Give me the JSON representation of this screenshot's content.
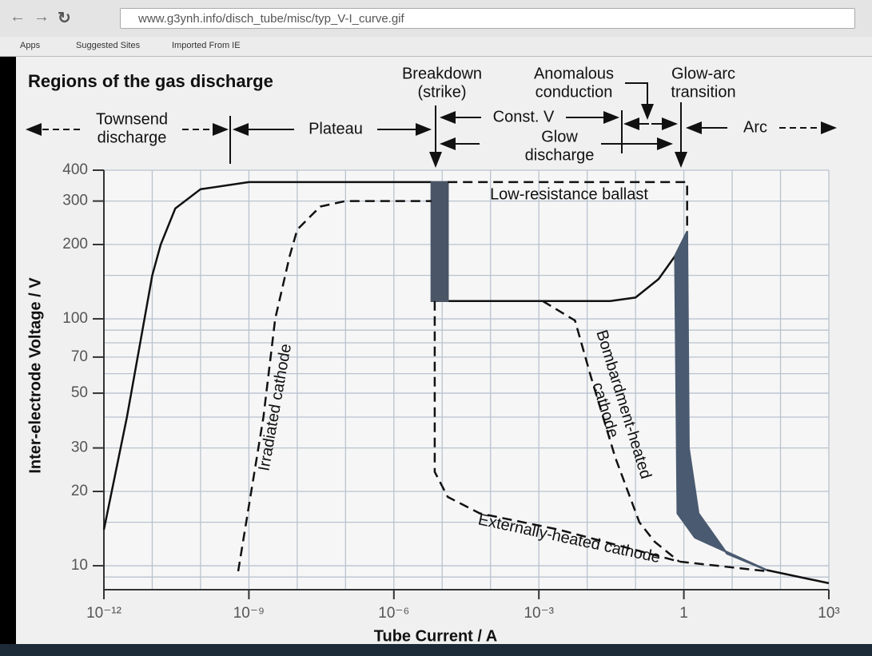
{
  "browser": {
    "url": "www.g3ynh.info/disch_tube/misc/typ_V-I_curve.gif",
    "bookmarks": [
      "Apps",
      "Suggested Sites",
      "Imported From IE"
    ]
  },
  "chart_data": {
    "type": "line",
    "title": "Regions of the gas discharge",
    "x_label": "Tube Current / A",
    "y_label": "Inter-electrode Voltage / V",
    "xlog": true,
    "ylog": true,
    "grid": true,
    "xlim": [
      1e-12,
      1000
    ],
    "ylim": [
      8,
      400
    ],
    "xticks": [
      {
        "value": 1e-12,
        "label": "10⁻¹²"
      },
      {
        "value": 1e-09,
        "label": "10⁻⁹"
      },
      {
        "value": 1e-06,
        "label": "10⁻⁶"
      },
      {
        "value": 0.001,
        "label": "10⁻³"
      },
      1,
      {
        "value": 1000,
        "label": "10³"
      }
    ],
    "yticks": [
      10,
      20,
      30,
      50,
      70,
      100,
      200,
      300,
      400
    ],
    "xgrid": [
      1e-12,
      1e-11,
      1e-10,
      1e-09,
      1e-08,
      1e-07,
      1e-06,
      1e-05,
      0.0001,
      0.001,
      0.01,
      0.1,
      1,
      10,
      100,
      1000
    ],
    "ygrid": [
      9,
      10,
      15,
      20,
      30,
      40,
      50,
      60,
      70,
      80,
      90,
      100,
      150,
      200,
      300,
      400
    ],
    "annotations": [
      {
        "lines": [
          "Townsend",
          "discharge"
        ]
      },
      {
        "lines": [
          "Plateau"
        ]
      },
      {
        "lines": [
          "Breakdown",
          "(strike)"
        ]
      },
      {
        "lines": [
          "Const. V"
        ]
      },
      {
        "lines": [
          "Glow",
          "discharge"
        ]
      },
      {
        "lines": [
          "Anomalous",
          "conduction"
        ]
      },
      {
        "lines": [
          "Glow-arc",
          "transition"
        ]
      },
      {
        "lines": [
          "Arc"
        ]
      }
    ],
    "series": [
      {
        "style": "solid",
        "color": "#111111",
        "x": [
          1e-12,
          3e-12,
          1e-11,
          1.5e-11,
          3e-11,
          1e-10,
          1e-09,
          6e-06
        ],
        "values": [
          14,
          40,
          150,
          200,
          280,
          335,
          358,
          358
        ]
      },
      {
        "style": "solid",
        "color": "#111111",
        "x": [
          1.3e-05,
          0.001,
          0.03,
          0.1,
          0.3,
          0.66,
          1.17
        ],
        "values": [
          118,
          118,
          118,
          122,
          145,
          180,
          225
        ]
      },
      {
        "style": "filled",
        "color": "#4a5566",
        "x": [
          6e-06,
          6e-06,
          1.3e-05,
          1.3e-05
        ],
        "values": [
          118,
          358,
          358,
          118
        ]
      },
      {
        "style": "filled",
        "color": "#4a5a70",
        "x": [
          0.66,
          0.74,
          1.7,
          52,
          7.8,
          2.0,
          1.26,
          1.17
        ],
        "values": [
          180,
          16.3,
          13,
          9.6,
          11.2,
          16.3,
          30,
          225
        ]
      },
      {
        "style": "solid",
        "color": "#111111",
        "x": [
          52,
          1000
        ],
        "values": [
          9.6,
          8.5
        ]
      },
      {
        "style": "dashed",
        "color": "#111111",
        "label": "Low-resistance ballast",
        "x": [
          1.3e-05,
          1.17,
          1.17
        ],
        "values": [
          358,
          358,
          225
        ]
      },
      {
        "style": "dashed",
        "color": "#111111",
        "label": "Irradiated cathode",
        "x": [
          6e-10,
          2e-09,
          3.5e-09,
          7e-09,
          1e-08,
          3e-08,
          1e-07,
          6e-06
        ],
        "values": [
          9.5,
          40,
          100,
          180,
          230,
          285,
          300,
          300
        ]
      },
      {
        "style": "dashed",
        "color": "#111111",
        "label": "Externally-heated cathode",
        "x": [
          7e-06,
          7e-06,
          1.3e-05,
          6e-05,
          0.0026,
          0.8,
          52
        ],
        "values": [
          118,
          24,
          19,
          16.3,
          14,
          10.4,
          9.5
        ]
      },
      {
        "style": "dashed",
        "color": "#111111",
        "label_lines": [
          "Bombardment-heated",
          "cathode"
        ],
        "x": [
          0.0012,
          0.0056,
          0.012,
          0.038,
          0.12,
          0.25,
          0.8
        ],
        "values": [
          118,
          98.5,
          58,
          27.5,
          15,
          12.5,
          10.4
        ]
      }
    ]
  }
}
